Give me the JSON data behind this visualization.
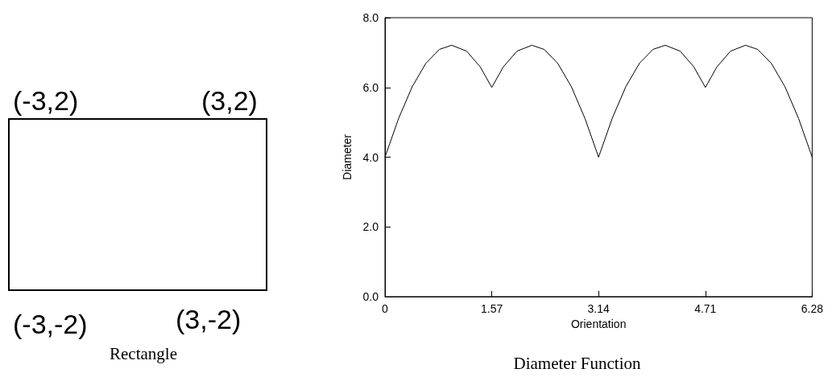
{
  "chart_data": [
    {
      "type": "other",
      "title": "Rectangle",
      "annotations": [
        "(-3,2)",
        "(3,2)",
        "(-3,-2)",
        "(3,-2)"
      ]
    },
    {
      "type": "line",
      "title": "Diameter Function",
      "xlabel": "Orientation",
      "ylabel": "Diameter",
      "x": [
        0,
        0.2,
        0.4,
        0.6,
        0.8,
        0.98,
        1.2,
        1.4,
        1.57,
        1.74,
        1.94,
        2.16,
        2.34,
        2.54,
        2.74,
        2.94,
        3.14,
        3.34,
        3.54,
        3.74,
        3.94,
        4.12,
        4.34,
        4.54,
        4.71,
        4.88,
        5.08,
        5.3,
        5.48,
        5.68,
        5.88,
        6.08,
        6.28
      ],
      "series": [
        {
          "color": "#000000",
          "values": [
            4.0,
            5.11,
            6.02,
            6.69,
            7.09,
            7.21,
            7.04,
            6.59,
            6.0,
            6.59,
            7.04,
            7.21,
            7.09,
            6.69,
            6.02,
            5.11,
            4.0,
            5.11,
            6.02,
            6.69,
            7.09,
            7.21,
            7.04,
            6.59,
            6.0,
            6.59,
            7.04,
            7.21,
            7.09,
            6.69,
            6.02,
            5.11,
            4.0
          ]
        }
      ],
      "xlim": [
        0,
        6.28
      ],
      "xticks": [
        0,
        1.57,
        3.14,
        4.71,
        6.28
      ],
      "ylim": [
        0,
        8
      ],
      "yticks": [
        {
          "value": 0,
          "label": "0.0"
        },
        {
          "value": 2,
          "label": "2.0"
        },
        {
          "value": 4,
          "label": "4.0"
        },
        {
          "value": 6,
          "label": "6.0"
        },
        {
          "value": 8,
          "label": "8.0"
        }
      ],
      "grid": false,
      "marker": "none"
    }
  ]
}
